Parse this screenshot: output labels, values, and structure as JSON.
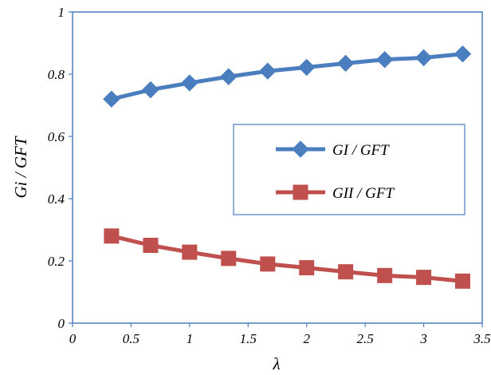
{
  "chart_data": {
    "type": "line",
    "xlabel": "λ",
    "ylabel": "Gi / GFT",
    "xlim": [
      0,
      3.5
    ],
    "ylim": [
      0,
      1
    ],
    "xticks": [
      "0",
      "0.5",
      "1",
      "1.5",
      "2",
      "2.5",
      "3",
      "3.5"
    ],
    "yticks": [
      "0",
      "0.2",
      "0.4",
      "0.6",
      "0.8",
      "1"
    ],
    "grid": false,
    "legend_position": "right",
    "x": [
      0.333,
      0.667,
      1.0,
      1.333,
      1.667,
      2.0,
      2.333,
      2.667,
      3.0,
      3.333
    ],
    "series": [
      {
        "name": "GI / GFT",
        "marker": "diamond",
        "color": "#4a7ebf",
        "values": [
          0.72,
          0.75,
          0.772,
          0.792,
          0.81,
          0.822,
          0.835,
          0.847,
          0.853,
          0.865
        ]
      },
      {
        "name": "GII / GFT",
        "marker": "square",
        "color": "#c0504d",
        "values": [
          0.28,
          0.25,
          0.228,
          0.208,
          0.19,
          0.178,
          0.165,
          0.153,
          0.147,
          0.135
        ]
      }
    ]
  }
}
